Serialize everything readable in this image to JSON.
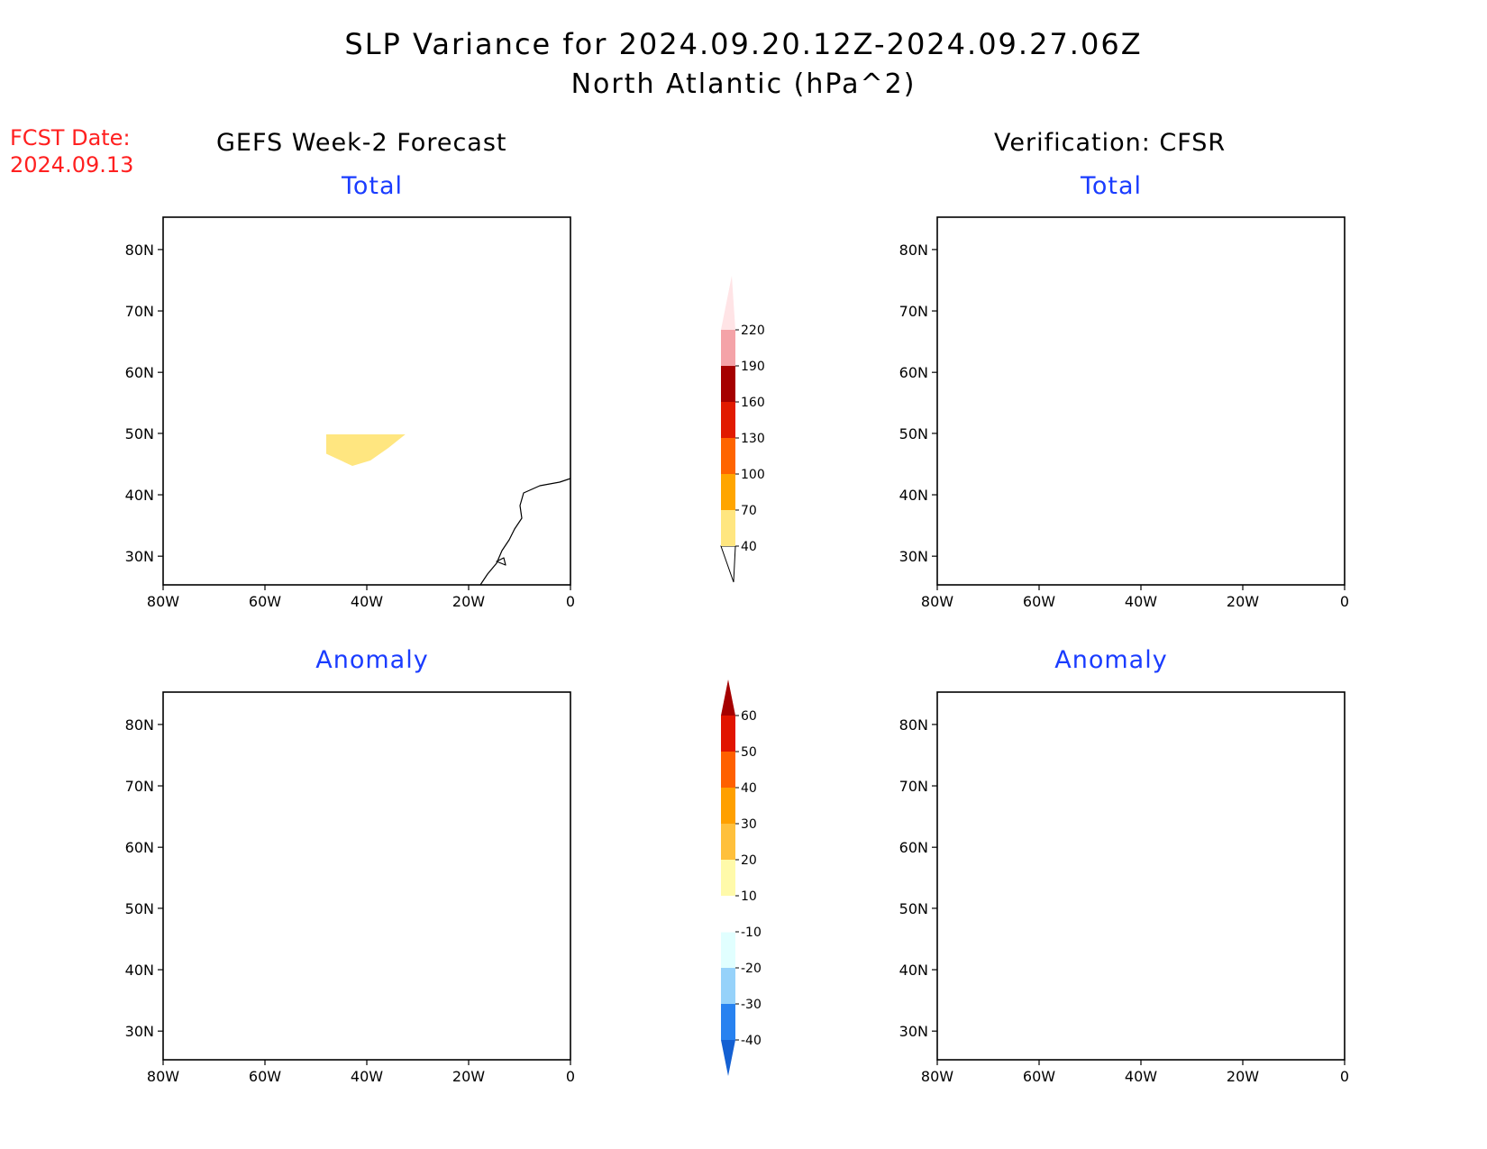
{
  "title": {
    "line1": "SLP Variance for 2024.09.20.12Z-2024.09.27.06Z",
    "line2": "North Atlantic (hPa^2)"
  },
  "forecast_date": {
    "label": "FCST Date:",
    "value": "2024.09.13"
  },
  "columns": {
    "left": "GEFS Week-2 Forecast",
    "right": "Verification: CFSR"
  },
  "panels": {
    "top_left": "Total",
    "top_right": "Total",
    "bottom_left": "Anomaly",
    "bottom_right": "Anomaly"
  },
  "axes": {
    "lat_labels": [
      "80N",
      "70N",
      "60N",
      "50N",
      "40N",
      "30N"
    ],
    "lon_labels": [
      "80W",
      "60W",
      "40W",
      "20W",
      "0"
    ]
  },
  "total_colorbar": {
    "levels": [
      "40",
      "70",
      "100",
      "130",
      "160",
      "190",
      "220"
    ],
    "colors": [
      "#ffe680",
      "#ffa500",
      "#ff6400",
      "#e11a00",
      "#a50000",
      "#f4a3a8",
      "#ffe4e6"
    ]
  },
  "anomaly_colorbar": {
    "levels": [
      "-40",
      "-30",
      "-20",
      "-10",
      "10",
      "20",
      "30",
      "40",
      "50",
      "60"
    ],
    "colors": [
      "#1460d2",
      "#2882f0",
      "#96d2fa",
      "#e1ffff",
      "#ffffff",
      "#fffaaa",
      "#ffc03c",
      "#ffa000",
      "#ff6000",
      "#e11400",
      "#a50000"
    ]
  },
  "palette": {
    "gefs_total_base": "#ffe680",
    "orange": "#ffa500",
    "dark_orange": "#ff6400",
    "red": "#e11a00",
    "dark_red": "#a50000",
    "anom_deep_blue": "#1460d2",
    "anom_blue": "#2882f0",
    "anom_light_blue": "#96d2fa",
    "anom_pale_blue": "#e1ffff",
    "anom_pale_yellow": "#fffaaa",
    "anom_yellow_orange": "#ffc03c"
  }
}
